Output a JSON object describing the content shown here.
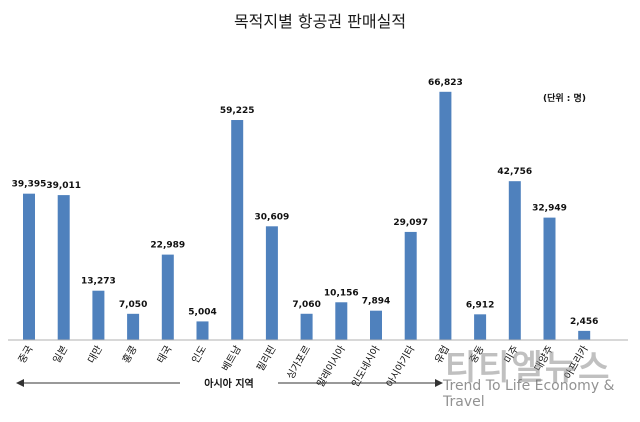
{
  "chart_data": {
    "type": "bar",
    "title": "목적지별 항공권 판매실적",
    "unit_label": "(단위 : 명)",
    "categories": [
      "중국",
      "일본",
      "대만",
      "홍콩",
      "태국",
      "인도",
      "베트남",
      "필리핀",
      "싱가포르",
      "말레이시아",
      "인도네시아",
      "아시아기타",
      "유럽",
      "중동",
      "미주",
      "대양주",
      "아프리카"
    ],
    "value_labels": [
      "39,395",
      "39,011",
      "13,273",
      "7,050",
      "22,989",
      "5,004",
      "59,225",
      "30,609",
      "7,060",
      "10,156",
      "7,894",
      "29,097",
      "66,823",
      "6,912",
      "42,756",
      "32,949",
      "2,456"
    ],
    "values": [
      39395,
      39011,
      13273,
      7050,
      22989,
      5004,
      59225,
      30609,
      7060,
      10156,
      7894,
      29097,
      66823,
      6912,
      42756,
      32949,
      2456
    ],
    "ylim": [
      0,
      70000
    ],
    "bar_color": "#4f81bd",
    "grid": false,
    "region_annotation": "아시아 지역"
  },
  "watermark": {
    "korean": "티티엘뉴스",
    "english": "Trend To Life Economy & Travel"
  }
}
